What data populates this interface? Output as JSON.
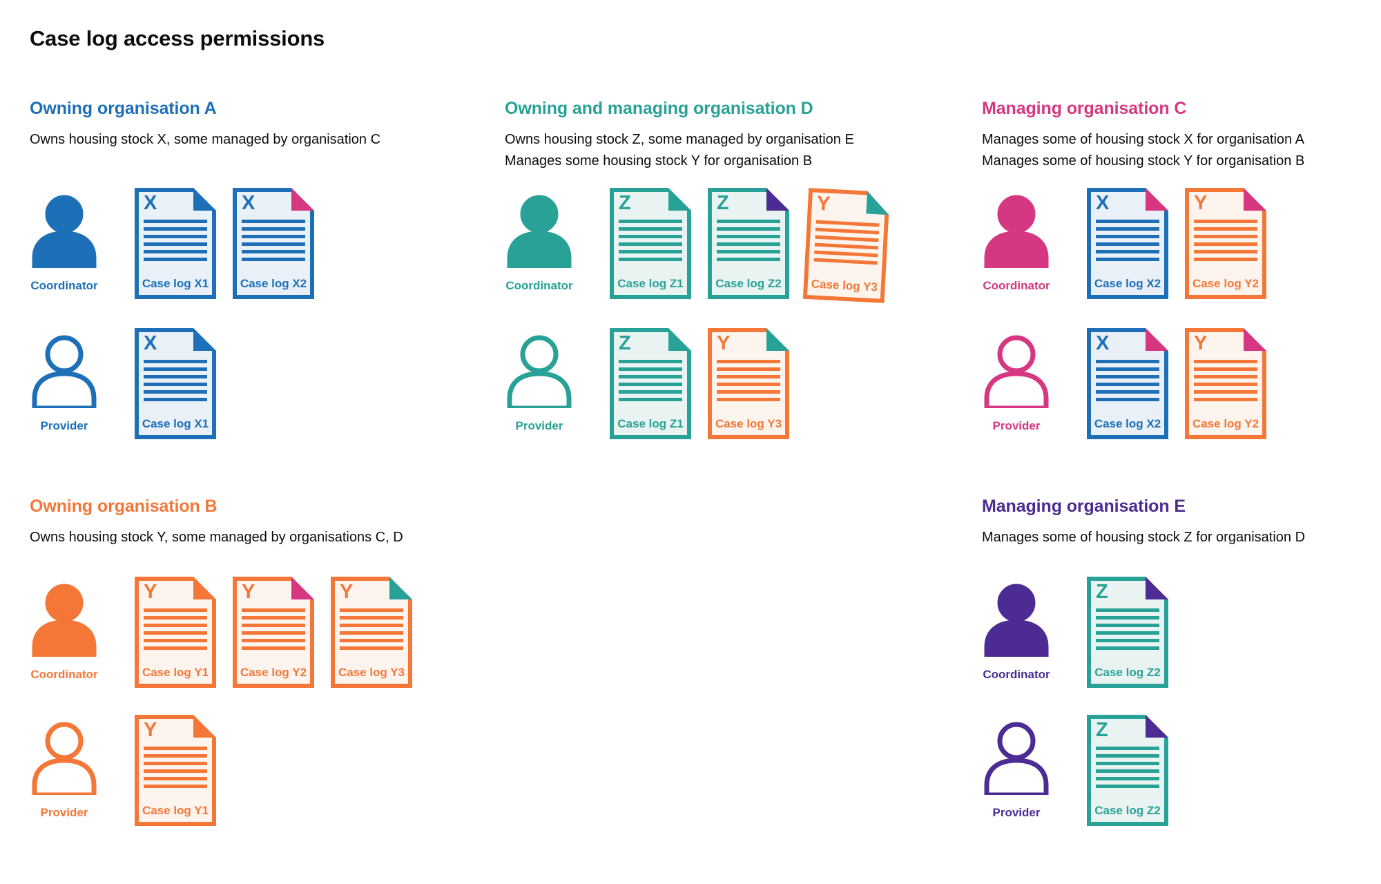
{
  "page_title": "Case log access permissions",
  "colors": {
    "blue": "#1d70b8",
    "teal": "#28a197",
    "pink": "#d53880",
    "orange": "#f47738",
    "purple": "#4c2c92",
    "text": "#0b0c0c"
  },
  "sections": [
    {
      "id": "org-a",
      "heading": "Owning organisation A",
      "color": "blue",
      "position": "top",
      "description_lines": [
        "Owns housing stock X, some managed by organisation C"
      ],
      "rows": [
        {
          "role": "Coordinator",
          "person_style": "filled",
          "docs": [
            {
              "letter": "X",
              "label": "Case log X1",
              "color": "blue",
              "fold": "blue"
            },
            {
              "letter": "X",
              "label": "Case log X2",
              "color": "blue",
              "fold": "pink"
            }
          ]
        },
        {
          "role": "Provider",
          "person_style": "outline",
          "docs": [
            {
              "letter": "X",
              "label": "Case log X1",
              "color": "blue",
              "fold": "blue"
            }
          ]
        }
      ]
    },
    {
      "id": "org-d",
      "heading": "Owning and managing organisation D",
      "color": "teal",
      "position": "top",
      "description_lines": [
        "Owns housing stock Z, some managed by organisation E",
        "Manages some housing stock Y for organisation B"
      ],
      "rows": [
        {
          "role": "Coordinator",
          "person_style": "filled",
          "docs": [
            {
              "letter": "Z",
              "label": "Case log Z1",
              "color": "teal",
              "fold": "teal"
            },
            {
              "letter": "Z",
              "label": "Case log Z2",
              "color": "teal",
              "fold": "purple"
            },
            {
              "letter": "Y",
              "label": "Case log Y3",
              "color": "orange",
              "fold": "teal",
              "tilt": true
            }
          ]
        },
        {
          "role": "Provider",
          "person_style": "outline",
          "docs": [
            {
              "letter": "Z",
              "label": "Case log Z1",
              "color": "teal",
              "fold": "teal"
            },
            {
              "letter": "Y",
              "label": "Case log Y3",
              "color": "orange",
              "fold": "teal"
            }
          ]
        }
      ]
    },
    {
      "id": "org-c",
      "heading": "Managing organisation C",
      "color": "pink",
      "position": "top",
      "description_lines": [
        "Manages some of housing stock X for organisation A",
        "Manages some of housing stock Y for organisation B"
      ],
      "rows": [
        {
          "role": "Coordinator",
          "person_style": "filled",
          "docs": [
            {
              "letter": "X",
              "label": "Case log X2",
              "color": "blue",
              "fold": "pink"
            },
            {
              "letter": "Y",
              "label": "Case log Y2",
              "color": "orange",
              "fold": "pink"
            }
          ]
        },
        {
          "role": "Provider",
          "person_style": "outline",
          "docs": [
            {
              "letter": "X",
              "label": "Case log X2",
              "color": "blue",
              "fold": "pink"
            },
            {
              "letter": "Y",
              "label": "Case log Y2",
              "color": "orange",
              "fold": "pink"
            }
          ]
        }
      ]
    },
    {
      "id": "org-b",
      "heading": "Owning organisation B",
      "color": "orange",
      "position": "bottom",
      "description_lines": [
        "Owns housing stock Y, some managed by organisations C, D"
      ],
      "rows": [
        {
          "role": "Coordinator",
          "person_style": "filled",
          "docs": [
            {
              "letter": "Y",
              "label": "Case log Y1",
              "color": "orange",
              "fold": "orange"
            },
            {
              "letter": "Y",
              "label": "Case log Y2",
              "color": "orange",
              "fold": "pink"
            },
            {
              "letter": "Y",
              "label": "Case log Y3",
              "color": "orange",
              "fold": "teal"
            }
          ]
        },
        {
          "role": "Provider",
          "person_style": "outline",
          "docs": [
            {
              "letter": "Y",
              "label": "Case log Y1",
              "color": "orange",
              "fold": "orange"
            }
          ]
        }
      ]
    },
    {
      "id": "org-e",
      "heading": "Managing organisation E",
      "color": "purple",
      "position": "bottom",
      "description_lines": [
        "Manages some of housing stock Z for organisation D"
      ],
      "rows": [
        {
          "role": "Coordinator",
          "person_style": "filled",
          "docs": [
            {
              "letter": "Z",
              "label": "Case log Z2",
              "color": "teal",
              "fold": "purple"
            }
          ]
        },
        {
          "role": "Provider",
          "person_style": "outline",
          "docs": [
            {
              "letter": "Z",
              "label": "Case log Z2",
              "color": "teal",
              "fold": "purple"
            }
          ]
        }
      ]
    }
  ]
}
